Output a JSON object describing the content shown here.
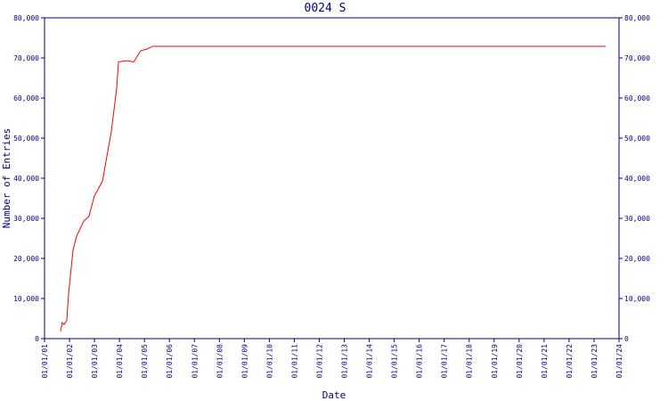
{
  "chart_data": {
    "type": "line",
    "title": "0024 S",
    "x_label": "Date",
    "y_label": "Number of Entries",
    "xlim": [
      2001,
      2024
    ],
    "xticks": [
      {
        "value": 2001,
        "label": "01/01/01"
      },
      {
        "value": 2002,
        "label": "01/01/02"
      },
      {
        "value": 2003,
        "label": "01/01/03"
      },
      {
        "value": 2004,
        "label": "01/01/04"
      },
      {
        "value": 2005,
        "label": "01/01/05"
      },
      {
        "value": 2006,
        "label": "01/01/06"
      },
      {
        "value": 2007,
        "label": "01/01/07"
      },
      {
        "value": 2008,
        "label": "01/01/08"
      },
      {
        "value": 2009,
        "label": "01/01/09"
      },
      {
        "value": 2010,
        "label": "01/01/10"
      },
      {
        "value": 2011,
        "label": "01/01/11"
      },
      {
        "value": 2012,
        "label": "01/01/12"
      },
      {
        "value": 2013,
        "label": "01/01/13"
      },
      {
        "value": 2014,
        "label": "01/01/14"
      },
      {
        "value": 2015,
        "label": "01/01/15"
      },
      {
        "value": 2016,
        "label": "01/01/16"
      },
      {
        "value": 2017,
        "label": "01/01/17"
      },
      {
        "value": 2018,
        "label": "01/01/18"
      },
      {
        "value": 2019,
        "label": "01/01/19"
      },
      {
        "value": 2020,
        "label": "01/01/20"
      },
      {
        "value": 2021,
        "label": "01/01/21"
      },
      {
        "value": 2022,
        "label": "01/01/22"
      },
      {
        "value": 2023,
        "label": "01/01/23"
      },
      {
        "value": 2024,
        "label": "01/01/24"
      }
    ],
    "ylim": [
      0,
      80000
    ],
    "yticks": [
      0,
      {
        "value": 10000,
        "label": "10,000"
      },
      {
        "value": 20000,
        "label": "20,000"
      },
      {
        "value": 30000,
        "label": "30,000"
      },
      {
        "value": 40000,
        "label": "40,000"
      },
      {
        "value": 50000,
        "label": "50,000"
      },
      {
        "value": 60000,
        "label": "60,000"
      },
      {
        "value": 70000,
        "label": "70,000"
      },
      {
        "value": 80000,
        "label": "80,000"
      }
    ],
    "x": [
      2001.64,
      2001.71,
      2001.78,
      2001.89,
      2001.96,
      2002.14,
      2002.28,
      2002.57,
      2002.78,
      2002.99,
      2003.32,
      2003.67,
      2003.89,
      2003.96,
      2004.14,
      2004.32,
      2004.57,
      2004.85,
      2005.1,
      2005.32,
      2023.47
    ],
    "series": [
      {
        "color": "#ff0000",
        "values": [
          1800,
          4000,
          3500,
          4500,
          11000,
          22000,
          25500,
          29300,
          30500,
          35500,
          39300,
          51500,
          62500,
          69000,
          69200,
          69300,
          69000,
          71800,
          72200,
          72900,
          72900
        ]
      }
    ],
    "axis_color": "#000080"
  }
}
